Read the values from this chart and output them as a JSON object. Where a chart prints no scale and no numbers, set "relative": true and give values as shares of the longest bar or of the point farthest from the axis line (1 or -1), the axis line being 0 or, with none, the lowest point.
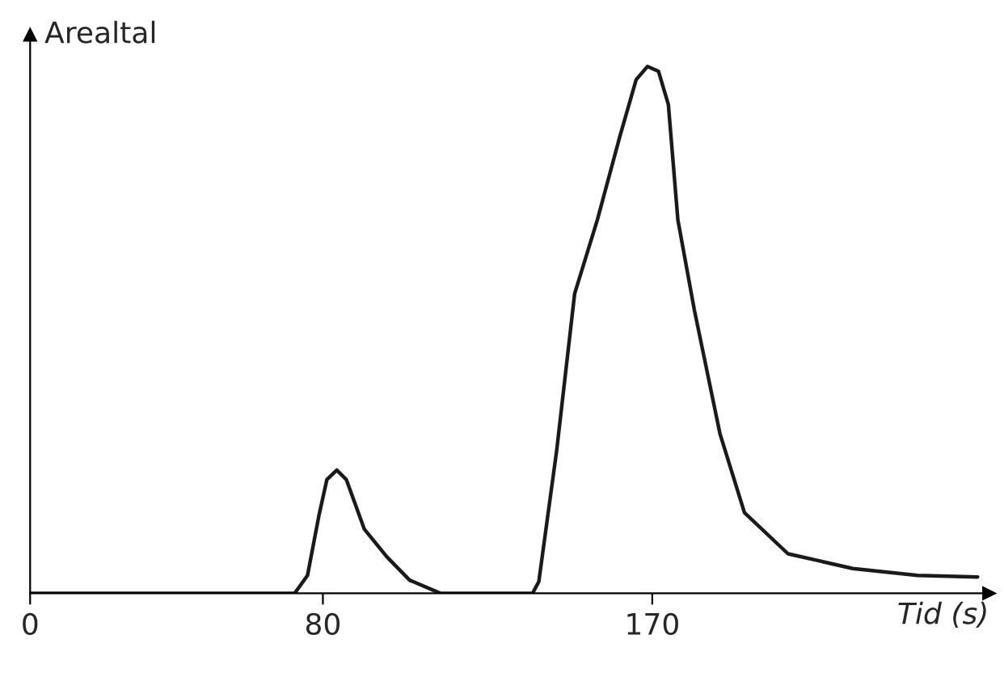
{
  "chart_data": {
    "type": "line",
    "relative": true,
    "ylabel": "Arealtal",
    "xlabel": "Tid (s)",
    "x": [
      0,
      72.3,
      75.8,
      78.9,
      81.1,
      83.8,
      86.4,
      91.3,
      97.5,
      103.7,
      112.1,
      137.3,
      139,
      143.9,
      148.8,
      155,
      161.1,
      165.6,
      168.7,
      171.7,
      174.4,
      177,
      181.5,
      188.5,
      195.2,
      207.1,
      224.8,
      242.5,
      258.9
    ],
    "series": [
      {
        "color": "#1a1a1a",
        "values": [
          0,
          0,
          0.034,
          0.147,
          0.216,
          0.234,
          0.216,
          0.122,
          0.069,
          0.025,
          0,
          0,
          0.022,
          0.272,
          0.569,
          0.709,
          0.866,
          0.975,
          1,
          0.991,
          0.928,
          0.709,
          0.538,
          0.303,
          0.153,
          0.075,
          0.047,
          0.034,
          0.031
        ]
      }
    ],
    "xlim": [
      0,
      262
    ],
    "xticks": [
      0,
      80,
      170
    ],
    "grid": false,
    "marker": "none",
    "line_style": "solid"
  }
}
